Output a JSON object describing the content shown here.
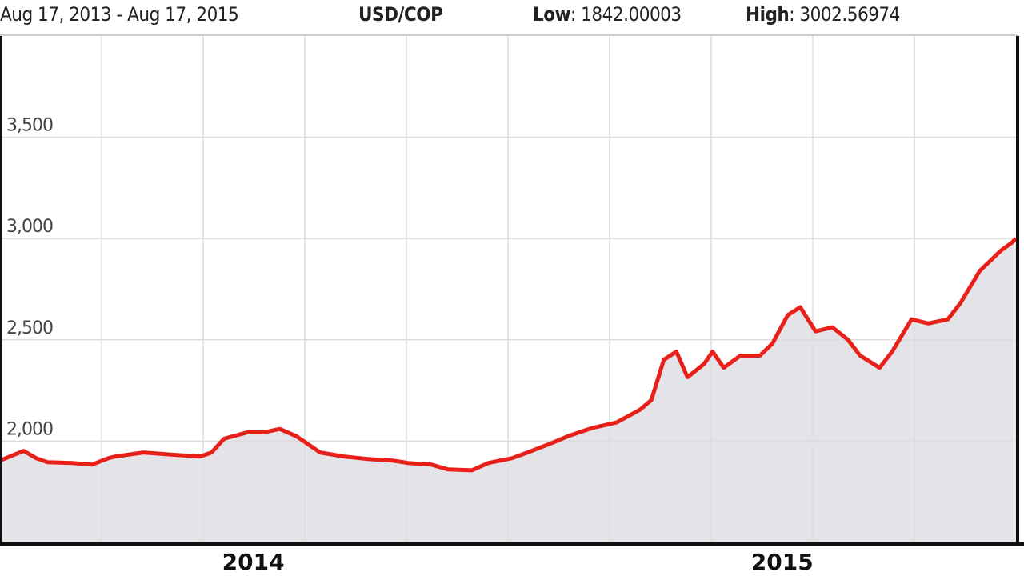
{
  "header": {
    "range": "Aug 17, 2013 - Aug 17, 2015",
    "pair": "USD/COP",
    "low_label": "Low",
    "low_value": ": 1842.00003",
    "high_label": "High",
    "high_value": ": 3002.56974"
  },
  "chart_data": {
    "type": "area",
    "title": "USD/COP",
    "xlim": [
      "2013-08-17",
      "2015-08-17"
    ],
    "ylim": [
      1500,
      4000
    ],
    "grid": true,
    "yticks": [
      {
        "value": 2000,
        "label": "2,000"
      },
      {
        "value": 2500,
        "label": "2,500"
      },
      {
        "value": 3000,
        "label": "3,000"
      },
      {
        "value": 3500,
        "label": "3,500"
      }
    ],
    "xticks": [
      {
        "date": "2014-02-15",
        "label": "2014"
      },
      {
        "date": "2015-03-02",
        "label": "2015"
      }
    ],
    "colors": {
      "line": "#e8201a",
      "fill": "#e4e3e8",
      "grid": "#dddddd",
      "axis": "#111111"
    },
    "series": [
      {
        "points": [
          [
            "2013-08-17",
            1904
          ],
          [
            "2013-09-03",
            1952
          ],
          [
            "2013-09-12",
            1916
          ],
          [
            "2013-09-20",
            1896
          ],
          [
            "2013-10-08",
            1892
          ],
          [
            "2013-10-22",
            1884
          ],
          [
            "2013-11-03",
            1916
          ],
          [
            "2013-11-08",
            1924
          ],
          [
            "2013-11-28",
            1944
          ],
          [
            "2013-12-21",
            1932
          ],
          [
            "2014-01-08",
            1924
          ],
          [
            "2014-01-16",
            1944
          ],
          [
            "2014-01-25",
            2012
          ],
          [
            "2014-02-11",
            2044
          ],
          [
            "2014-02-23",
            2044
          ],
          [
            "2014-03-06",
            2060
          ],
          [
            "2014-03-18",
            2024
          ],
          [
            "2014-04-04",
            1944
          ],
          [
            "2014-04-21",
            1924
          ],
          [
            "2014-05-08",
            1912
          ],
          [
            "2014-05-26",
            1904
          ],
          [
            "2014-06-06",
            1892
          ],
          [
            "2014-06-23",
            1884
          ],
          [
            "2014-07-05",
            1860
          ],
          [
            "2014-07-22",
            1856
          ],
          [
            "2014-08-03",
            1892
          ],
          [
            "2014-08-20",
            1916
          ],
          [
            "2014-08-31",
            1944
          ],
          [
            "2014-09-18",
            1992
          ],
          [
            "2014-09-29",
            2024
          ],
          [
            "2014-10-16",
            2064
          ],
          [
            "2014-11-03",
            2092
          ],
          [
            "2014-11-20",
            2156
          ],
          [
            "2014-11-28",
            2203
          ],
          [
            "2014-12-07",
            2402
          ],
          [
            "2014-12-16",
            2442
          ],
          [
            "2014-12-24",
            2315
          ],
          [
            "2015-01-05",
            2382
          ],
          [
            "2015-01-11",
            2442
          ],
          [
            "2015-01-19",
            2362
          ],
          [
            "2015-01-31",
            2422
          ],
          [
            "2015-02-14",
            2422
          ],
          [
            "2015-02-23",
            2482
          ],
          [
            "2015-03-06",
            2622
          ],
          [
            "2015-03-15",
            2661
          ],
          [
            "2015-03-26",
            2542
          ],
          [
            "2015-04-07",
            2562
          ],
          [
            "2015-04-18",
            2502
          ],
          [
            "2015-04-27",
            2422
          ],
          [
            "2015-05-11",
            2362
          ],
          [
            "2015-05-20",
            2442
          ],
          [
            "2015-06-03",
            2601
          ],
          [
            "2015-06-15",
            2581
          ],
          [
            "2015-06-29",
            2601
          ],
          [
            "2015-07-08",
            2681
          ],
          [
            "2015-07-22",
            2841
          ],
          [
            "2015-08-06",
            2940
          ],
          [
            "2015-08-14",
            2980
          ],
          [
            "2015-08-17",
            3000
          ]
        ]
      }
    ]
  }
}
